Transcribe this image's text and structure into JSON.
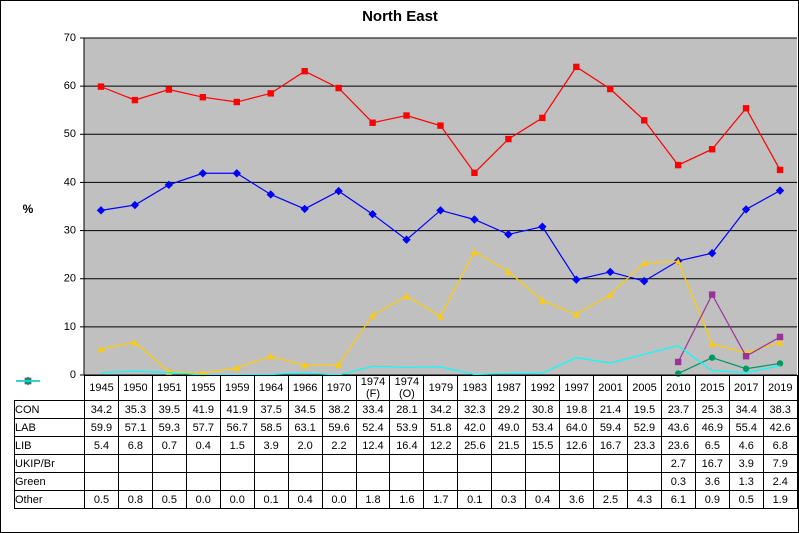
{
  "chart_data": {
    "type": "line",
    "title": "North East",
    "y_label": "%",
    "categories": [
      "1945",
      "1950",
      "1951",
      "1955",
      "1959",
      "1964",
      "1966",
      "1970",
      "1974 (F)",
      "1974 (O)",
      "1979",
      "1983",
      "1987",
      "1992",
      "1997",
      "2001",
      "2005",
      "2010",
      "2015",
      "2017",
      "2019"
    ],
    "ylim": [
      0,
      70
    ],
    "yticks": [
      0,
      10,
      20,
      30,
      40,
      50,
      60,
      70
    ],
    "grid": true,
    "series": [
      {
        "name": "CON",
        "color": "#0000ff",
        "marker": "diamond",
        "values": [
          34.2,
          35.3,
          39.5,
          41.9,
          41.9,
          37.5,
          34.5,
          38.2,
          33.4,
          28.1,
          34.2,
          32.3,
          29.2,
          30.8,
          19.8,
          21.4,
          19.5,
          23.7,
          25.3,
          34.4,
          38.3
        ],
        "value_labels": [
          "34.2",
          "35.3",
          "39.5",
          "41.9",
          "41.9",
          "37.5",
          "34.5",
          "38.2",
          "33.4",
          "28.1",
          "34.2",
          "32.3",
          "29.2",
          "30.8",
          "19.8",
          "21.4",
          "19.5",
          "23.7",
          "25.3",
          "34.4",
          "38.3"
        ]
      },
      {
        "name": "LAB",
        "color": "#ff0000",
        "marker": "square",
        "values": [
          59.9,
          57.1,
          59.3,
          57.7,
          56.7,
          58.5,
          63.1,
          59.6,
          52.4,
          53.9,
          51.8,
          42.0,
          49.0,
          53.4,
          64.0,
          59.4,
          52.9,
          43.6,
          46.9,
          55.4,
          42.6
        ],
        "value_labels": [
          "59.9",
          "57.1",
          "59.3",
          "57.7",
          "56.7",
          "58.5",
          "63.1",
          "59.6",
          "52.4",
          "53.9",
          "51.8",
          "42.0",
          "49.0",
          "53.4",
          "64.0",
          "59.4",
          "52.9",
          "43.6",
          "46.9",
          "55.4",
          "42.6"
        ]
      },
      {
        "name": "LIB",
        "color": "#ffcc00",
        "marker": "triangle",
        "values": [
          5.4,
          6.8,
          0.7,
          0.4,
          1.5,
          3.9,
          2.0,
          2.2,
          12.4,
          16.4,
          12.2,
          25.6,
          21.5,
          15.5,
          12.6,
          16.7,
          23.3,
          23.6,
          6.5,
          4.6,
          6.8
        ],
        "value_labels": [
          "5.4",
          "6.8",
          "0.7",
          "0.4",
          "1.5",
          "3.9",
          "2.0",
          "2.2",
          "12.4",
          "16.4",
          "12.2",
          "25.6",
          "21.5",
          "15.5",
          "12.6",
          "16.7",
          "23.3",
          "23.6",
          "6.5",
          "4.6",
          "6.8"
        ]
      },
      {
        "name": "UKIP/Br",
        "color": "#993399",
        "marker": "square",
        "values": [
          null,
          null,
          null,
          null,
          null,
          null,
          null,
          null,
          null,
          null,
          null,
          null,
          null,
          null,
          null,
          null,
          null,
          2.7,
          16.7,
          3.9,
          7.9
        ],
        "value_labels": [
          null,
          null,
          null,
          null,
          null,
          null,
          null,
          null,
          null,
          null,
          null,
          null,
          null,
          null,
          null,
          null,
          null,
          "2.7",
          "16.7",
          "3.9",
          "7.9"
        ]
      },
      {
        "name": "Green",
        "color": "#009966",
        "marker": "circle",
        "values": [
          null,
          null,
          null,
          null,
          null,
          null,
          null,
          null,
          null,
          null,
          null,
          null,
          null,
          null,
          null,
          null,
          null,
          0.3,
          3.6,
          1.3,
          2.4
        ],
        "value_labels": [
          null,
          null,
          null,
          null,
          null,
          null,
          null,
          null,
          null,
          null,
          null,
          null,
          null,
          null,
          null,
          null,
          null,
          "0.3",
          "3.6",
          "1.3",
          "2.4"
        ]
      },
      {
        "name": "Other",
        "color": "#00ffff",
        "marker": "none",
        "values": [
          0.5,
          0.8,
          0.5,
          0.0,
          0.0,
          0.1,
          0.4,
          0.0,
          1.8,
          1.6,
          1.7,
          0.1,
          0.3,
          0.4,
          3.6,
          2.5,
          4.3,
          6.1,
          0.9,
          0.5,
          1.9
        ],
        "value_labels": [
          "0.5",
          "0.8",
          "0.5",
          "0.0",
          "0.0",
          "0.1",
          "0.4",
          "0.0",
          "1.8",
          "1.6",
          "1.7",
          "0.1",
          "0.3",
          "0.4",
          "3.6",
          "2.5",
          "4.3",
          "6.1",
          "0.9",
          "0.5",
          "1.9"
        ]
      }
    ]
  }
}
